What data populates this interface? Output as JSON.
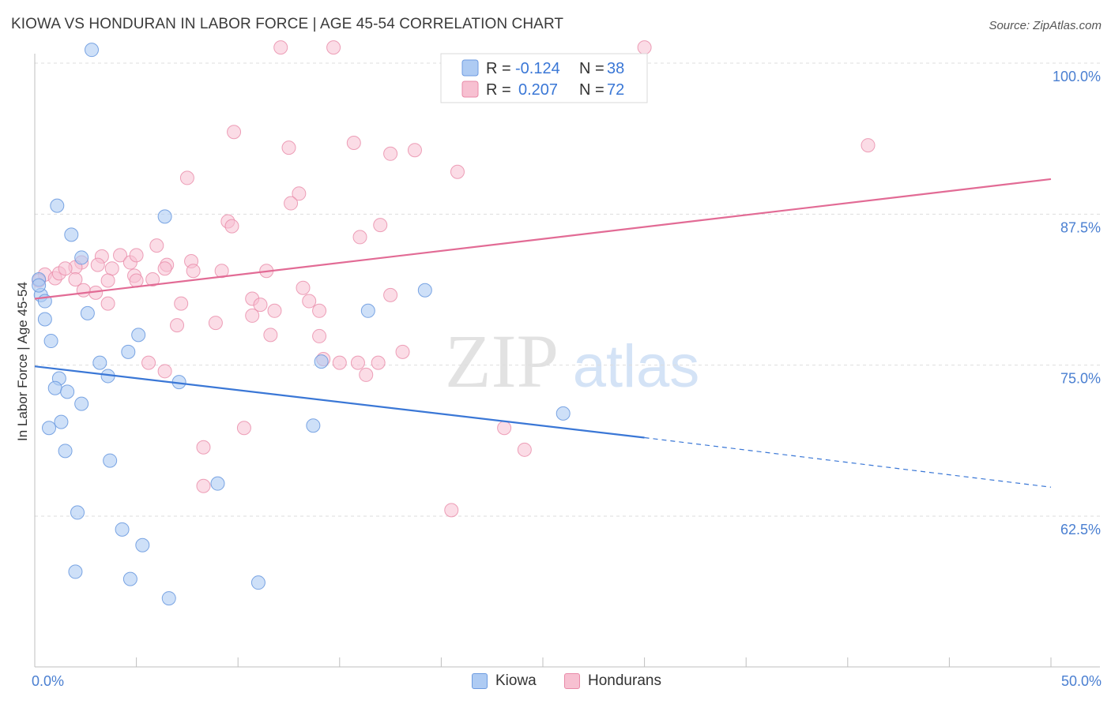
{
  "header": {
    "title": "KIOWA VS HONDURAN IN LABOR FORCE | AGE 45-54 CORRELATION CHART",
    "source": "Source: ZipAtlas.com"
  },
  "watermark": {
    "zip": "ZIP",
    "atlas": "atlas"
  },
  "legend_top": {
    "kiowa": {
      "r_label": "R =",
      "r_value": "-0.124",
      "n_label": "N =",
      "n_value": "38"
    },
    "hondurans": {
      "r_label": "R =",
      "r_value": "0.207",
      "n_label": "N =",
      "n_value": "72"
    }
  },
  "legend_bottom": {
    "kiowa": "Kiowa",
    "hondurans": "Hondurans"
  },
  "colors": {
    "kiowa_fill": "#aecbf3",
    "kiowa_stroke": "#6d9be0",
    "kiowa_line": "#3a77d6",
    "hond_fill": "#f7c0d1",
    "hond_stroke": "#e98aa8",
    "hond_line": "#e26b95",
    "tick_text": "#4a7fd1",
    "value_text": "#3a77d6",
    "grid": "#dddddd"
  },
  "chart_data": {
    "type": "scatter",
    "title": "KIOWA VS HONDURAN IN LABOR FORCE | AGE 45-54 CORRELATION CHART",
    "xlabel": "",
    "ylabel": "In Labor Force | Age 45-54",
    "xlim": [
      0,
      50
    ],
    "ylim": [
      52,
      103
    ],
    "x_tick_labels": [
      "0.0%",
      "50.0%"
    ],
    "y_ticks": [
      62.5,
      75.0,
      87.5,
      100.0
    ],
    "y_tick_labels": [
      "62.5%",
      "75.0%",
      "87.5%",
      "100.0%"
    ],
    "grid": true,
    "series": [
      {
        "name": "Kiowa",
        "r": -0.124,
        "n": 38,
        "points": [
          [
            2.8,
            101.1
          ],
          [
            1.1,
            88.2
          ],
          [
            1.8,
            85.8
          ],
          [
            6.4,
            87.3
          ],
          [
            2.3,
            83.9
          ],
          [
            0.2,
            82.1
          ],
          [
            0.3,
            80.8
          ],
          [
            0.5,
            80.3
          ],
          [
            2.6,
            79.3
          ],
          [
            0.5,
            78.8
          ],
          [
            0.8,
            77.0
          ],
          [
            5.1,
            77.5
          ],
          [
            4.6,
            76.1
          ],
          [
            3.2,
            75.2
          ],
          [
            3.6,
            74.1
          ],
          [
            1.2,
            73.9
          ],
          [
            1.0,
            73.1
          ],
          [
            1.6,
            72.8
          ],
          [
            7.1,
            73.6
          ],
          [
            2.3,
            71.8
          ],
          [
            1.3,
            70.3
          ],
          [
            0.7,
            69.8
          ],
          [
            1.5,
            67.9
          ],
          [
            3.7,
            67.1
          ],
          [
            9.0,
            65.2
          ],
          [
            2.1,
            62.8
          ],
          [
            4.3,
            61.4
          ],
          [
            5.3,
            60.1
          ],
          [
            2.0,
            57.9
          ],
          [
            4.7,
            57.3
          ],
          [
            11.0,
            57.0
          ],
          [
            6.6,
            55.7
          ],
          [
            13.7,
            70.0
          ],
          [
            14.1,
            75.3
          ],
          [
            16.4,
            79.5
          ],
          [
            19.2,
            81.2
          ],
          [
            26.0,
            71.0
          ],
          [
            0.2,
            81.6
          ]
        ]
      },
      {
        "name": "Hondurans",
        "r": 0.207,
        "n": 72,
        "points": [
          [
            12.1,
            101.3
          ],
          [
            14.7,
            101.3
          ],
          [
            30.0,
            101.3
          ],
          [
            9.8,
            94.3
          ],
          [
            12.5,
            93.0
          ],
          [
            15.7,
            93.4
          ],
          [
            17.5,
            92.5
          ],
          [
            18.7,
            92.8
          ],
          [
            41.0,
            93.2
          ],
          [
            7.5,
            90.5
          ],
          [
            20.8,
            91.0
          ],
          [
            13.0,
            89.2
          ],
          [
            12.6,
            88.4
          ],
          [
            9.5,
            86.9
          ],
          [
            9.7,
            86.5
          ],
          [
            16.0,
            85.6
          ],
          [
            17.0,
            86.6
          ],
          [
            6.0,
            84.9
          ],
          [
            3.3,
            84.0
          ],
          [
            4.2,
            84.1
          ],
          [
            4.7,
            83.5
          ],
          [
            5.0,
            84.1
          ],
          [
            3.1,
            83.3
          ],
          [
            6.5,
            83.3
          ],
          [
            7.7,
            83.6
          ],
          [
            2.3,
            83.5
          ],
          [
            2.0,
            83.1
          ],
          [
            3.8,
            83.0
          ],
          [
            7.8,
            82.8
          ],
          [
            9.2,
            82.8
          ],
          [
            11.4,
            82.8
          ],
          [
            0.5,
            82.5
          ],
          [
            1.0,
            82.2
          ],
          [
            2.0,
            82.1
          ],
          [
            4.9,
            82.4
          ],
          [
            5.0,
            82.0
          ],
          [
            5.8,
            82.1
          ],
          [
            1.2,
            82.6
          ],
          [
            3.0,
            81.0
          ],
          [
            3.6,
            80.1
          ],
          [
            2.4,
            81.2
          ],
          [
            0.2,
            82.0
          ],
          [
            7.2,
            80.1
          ],
          [
            10.7,
            80.5
          ],
          [
            11.8,
            79.5
          ],
          [
            10.7,
            79.1
          ],
          [
            13.2,
            81.4
          ],
          [
            13.5,
            80.3
          ],
          [
            14.0,
            79.5
          ],
          [
            17.5,
            80.8
          ],
          [
            8.9,
            78.5
          ],
          [
            7.0,
            78.3
          ],
          [
            11.6,
            77.5
          ],
          [
            14.0,
            77.4
          ],
          [
            14.2,
            75.5
          ],
          [
            15.0,
            75.2
          ],
          [
            5.6,
            75.2
          ],
          [
            6.4,
            74.5
          ],
          [
            16.9,
            75.2
          ],
          [
            16.3,
            74.2
          ],
          [
            10.3,
            69.8
          ],
          [
            8.3,
            68.2
          ],
          [
            8.3,
            65.0
          ],
          [
            23.1,
            69.8
          ],
          [
            24.1,
            68.0
          ],
          [
            20.5,
            63.0
          ],
          [
            15.9,
            75.2
          ],
          [
            3.6,
            82.0
          ],
          [
            1.5,
            83.0
          ],
          [
            6.4,
            83.0
          ],
          [
            11.1,
            80.0
          ],
          [
            18.1,
            76.1
          ]
        ]
      }
    ],
    "trend_lines": [
      {
        "series": "Kiowa",
        "from": [
          0,
          74.9
        ],
        "to": [
          30,
          69.0
        ],
        "dashed_to": [
          50,
          64.9
        ]
      },
      {
        "series": "Hondurans",
        "from": [
          0,
          80.5
        ],
        "to": [
          50,
          90.4
        ]
      }
    ]
  }
}
